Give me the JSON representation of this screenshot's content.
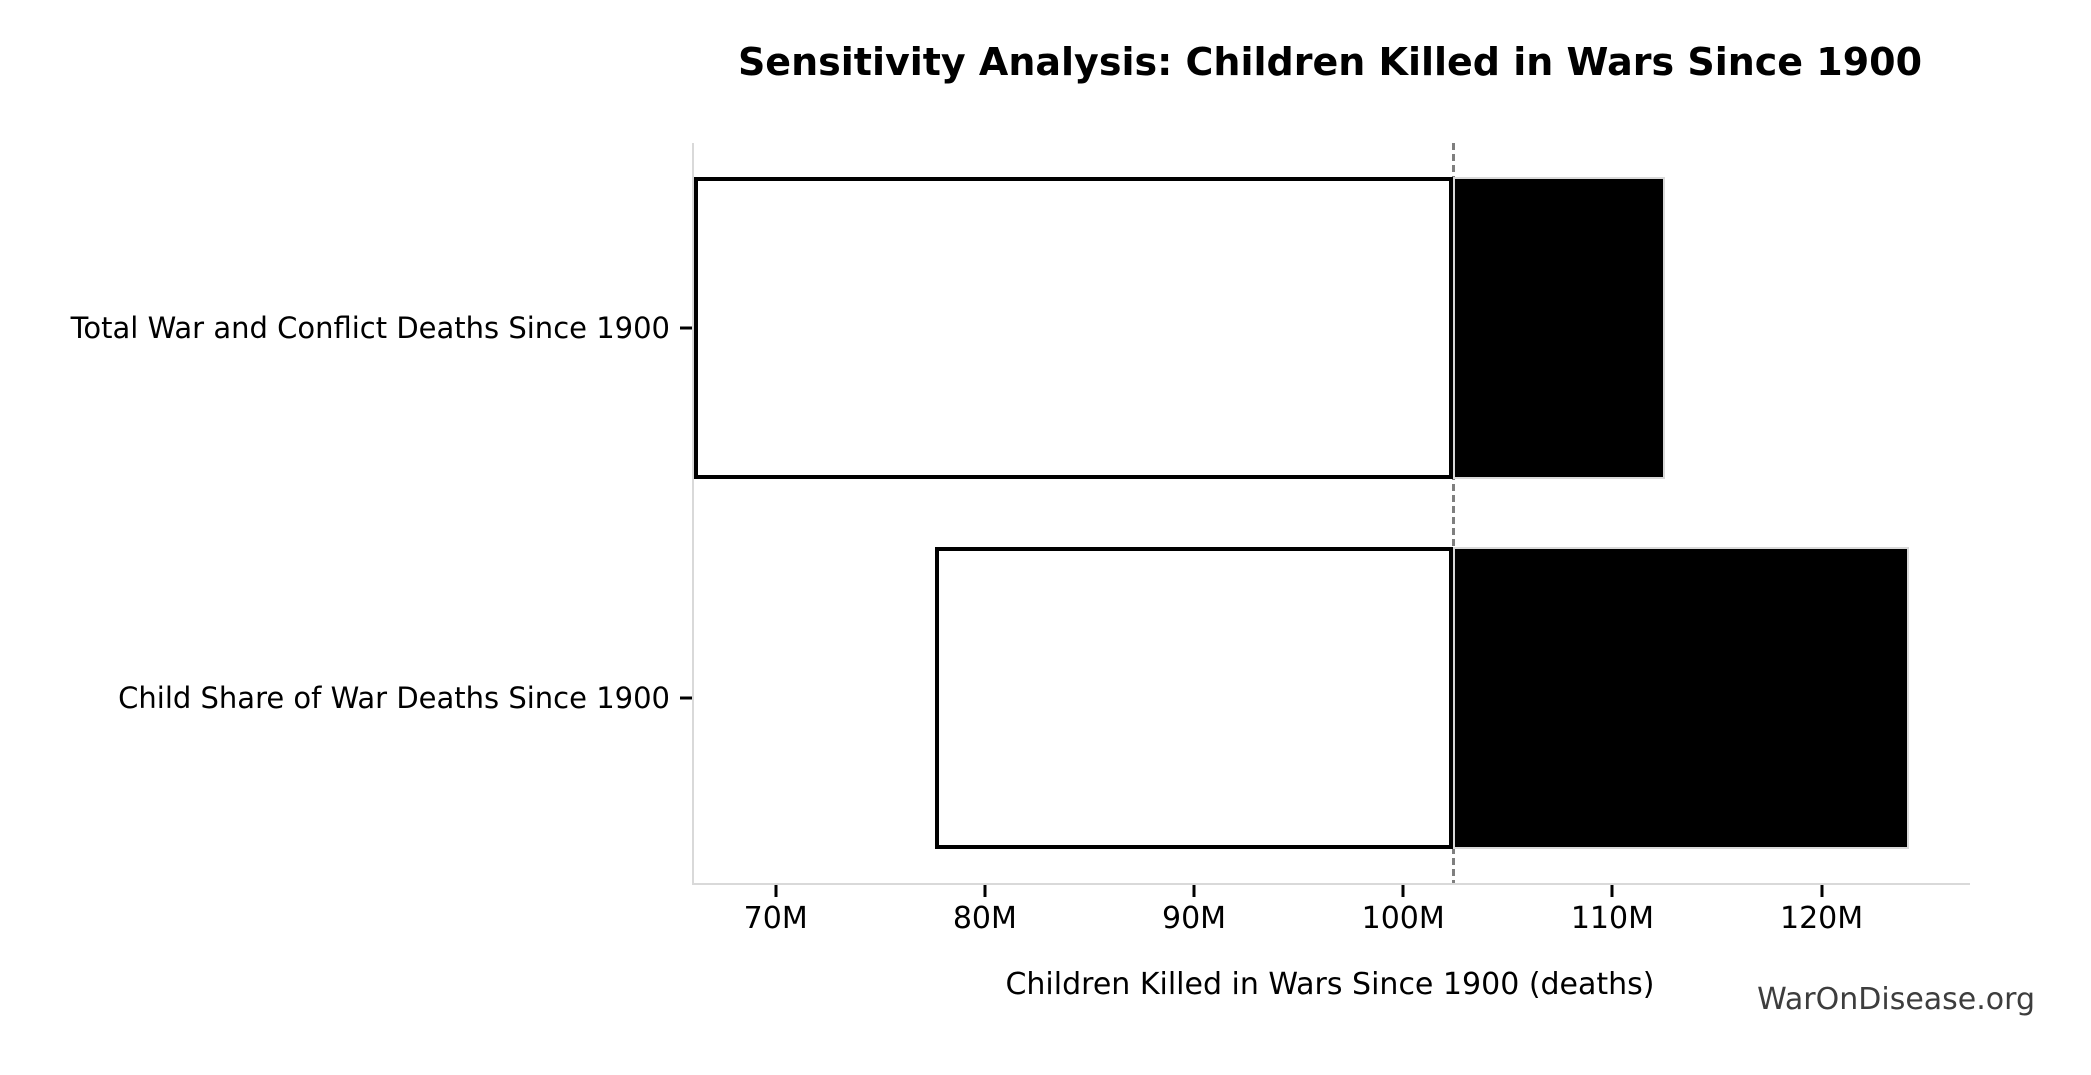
{
  "chart_data": {
    "type": "bar",
    "orientation": "horizontal",
    "title": "Sensitivity Analysis: Children Killed in Wars Since 1900",
    "xlabel": "Children Killed in Wars Since 1900 (deaths)",
    "ylabel": "",
    "unit": "millions of deaths",
    "xlim": [
      66,
      127
    ],
    "baseline_value": 102.3,
    "rows": [
      {
        "label": "Total War and Conflict Deaths Since 1900",
        "low": 66.0,
        "high": 112.4
      },
      {
        "label": "Child Share of War Deaths Since 1900",
        "low": 77.5,
        "high": 124.1
      }
    ],
    "x_ticks": [
      {
        "value": 70,
        "label": "70M"
      },
      {
        "value": 80,
        "label": "80M"
      },
      {
        "value": 90,
        "label": "90M"
      },
      {
        "value": 100,
        "label": "100M"
      },
      {
        "value": 110,
        "label": "110M"
      },
      {
        "value": 120,
        "label": "120M"
      }
    ],
    "legend": null,
    "grid": false,
    "baseline_line_style": "dashed",
    "colors": {
      "low_segment_fill": "#ffffff",
      "low_segment_border": "#000000",
      "high_segment_fill": "#000000",
      "high_segment_border": "#d9d9d9",
      "baseline_line": "#7f7f7f",
      "spine": "#d9d9d9",
      "text": "#000000",
      "watermark_text": "#3d3d3d"
    }
  },
  "watermark": "WarOnDisease.org"
}
